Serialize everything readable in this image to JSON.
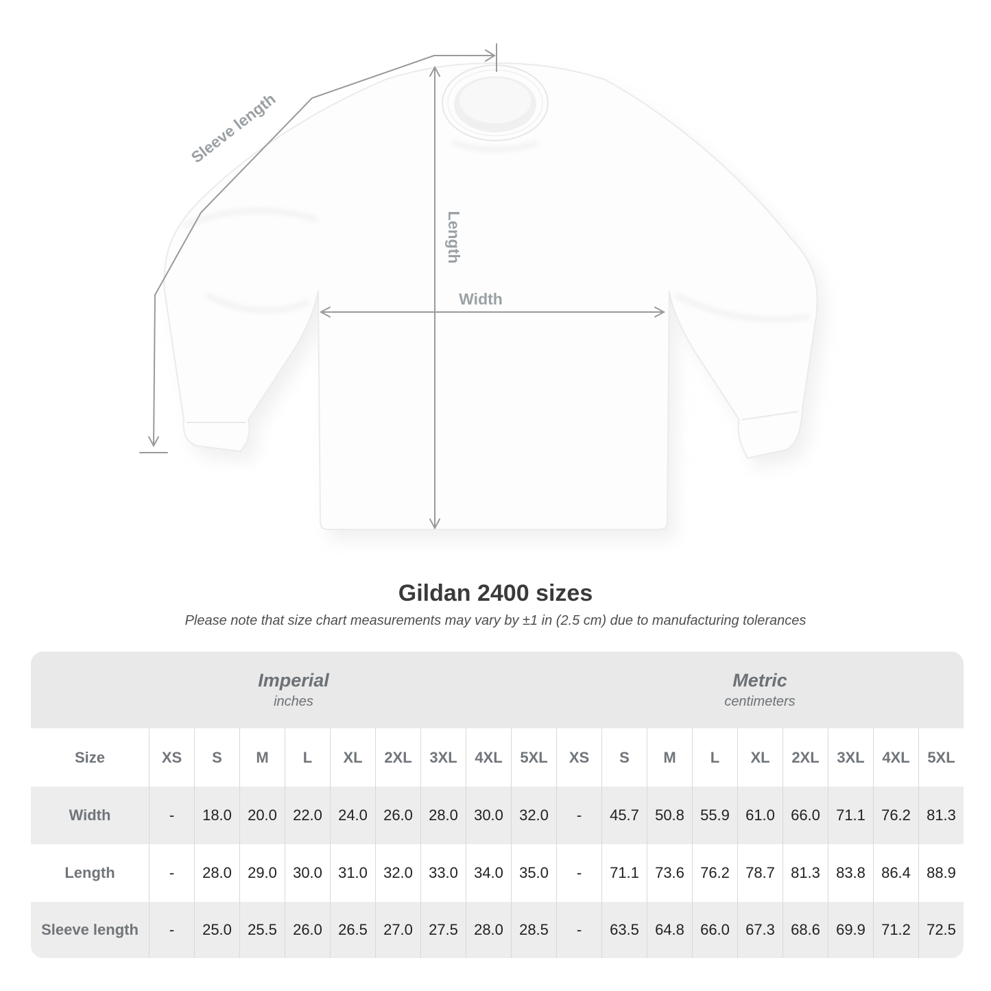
{
  "diagram": {
    "sleeve_length_label": "Sleeve length",
    "length_label": "Length",
    "width_label": "Width"
  },
  "title": "Gildan 2400 sizes",
  "subtitle": "Please note that size chart measurements may vary by ±1 in (2.5 cm) due to manufacturing tolerances",
  "chart_data": {
    "type": "table",
    "title": "Gildan 2400 sizes",
    "unit_groups": [
      {
        "label": "Imperial",
        "sublabel": "inches"
      },
      {
        "label": "Metric",
        "sublabel": "centimeters"
      }
    ],
    "size_column_header": "Size",
    "size_headers": [
      "XS",
      "S",
      "M",
      "L",
      "XL",
      "2XL",
      "3XL",
      "4XL",
      "5XL"
    ],
    "rows": [
      {
        "label": "Width",
        "imperial": [
          "-",
          "18.0",
          "20.0",
          "22.0",
          "24.0",
          "26.0",
          "28.0",
          "30.0",
          "32.0"
        ],
        "metric": [
          "-",
          "45.7",
          "50.8",
          "55.9",
          "61.0",
          "66.0",
          "71.1",
          "76.2",
          "81.3"
        ]
      },
      {
        "label": "Length",
        "imperial": [
          "-",
          "28.0",
          "29.0",
          "30.0",
          "31.0",
          "32.0",
          "33.0",
          "34.0",
          "35.0"
        ],
        "metric": [
          "-",
          "71.1",
          "73.6",
          "76.2",
          "78.7",
          "81.3",
          "83.8",
          "86.4",
          "88.9"
        ]
      },
      {
        "label": "Sleeve length",
        "imperial": [
          "-",
          "25.0",
          "25.5",
          "26.0",
          "26.5",
          "27.0",
          "27.5",
          "28.0",
          "28.5"
        ],
        "metric": [
          "-",
          "63.5",
          "64.8",
          "66.0",
          "67.3",
          "68.6",
          "69.9",
          "71.2",
          "72.5"
        ]
      }
    ]
  },
  "colors": {
    "band_gray": "#e9e9e9",
    "row_gray": "#ededed",
    "annotation_gray": "#97999c",
    "header_text": "#70757a",
    "value_text": "#212121"
  }
}
